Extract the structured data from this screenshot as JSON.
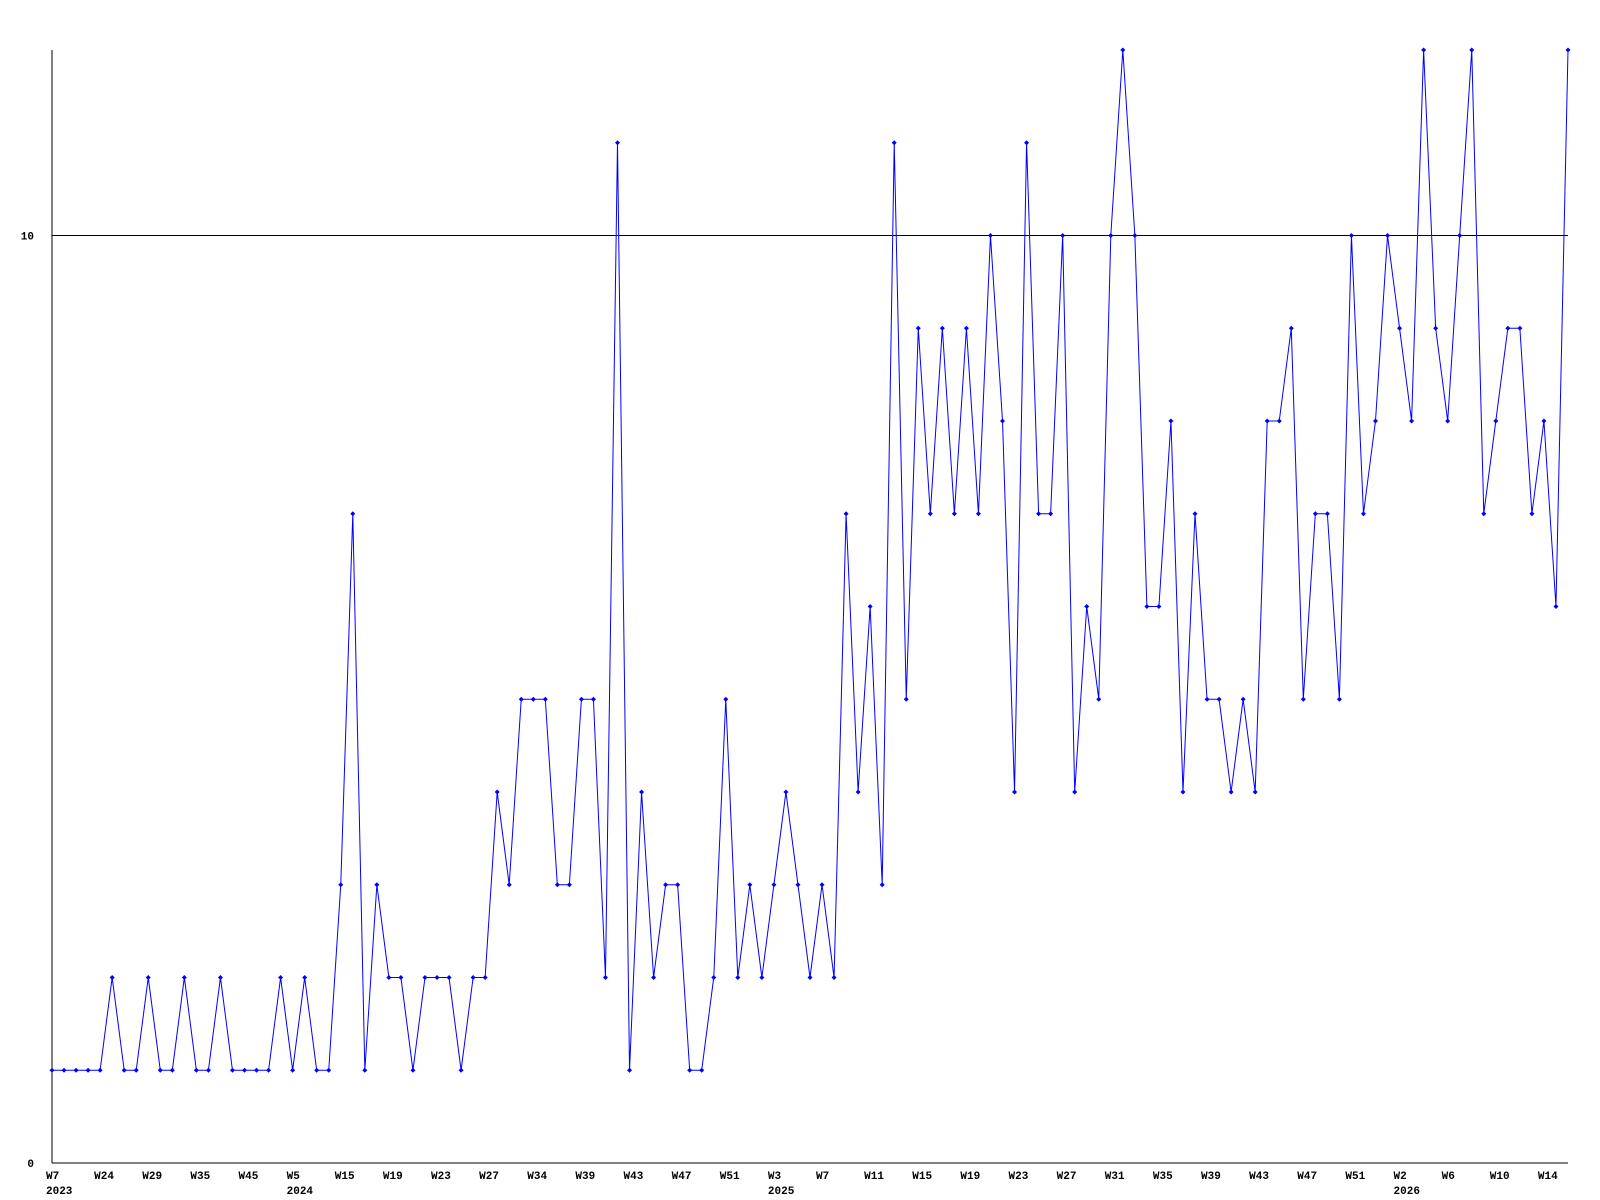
{
  "chart_data": {
    "type": "line",
    "categories": [
      "W7",
      null,
      null,
      null,
      "W24",
      null,
      null,
      null,
      "W29",
      null,
      null,
      null,
      "W35",
      null,
      null,
      null,
      "W45",
      null,
      null,
      null,
      "W5",
      null,
      null,
      null,
      "W15",
      null,
      null,
      null,
      "W19",
      null,
      null,
      null,
      "W23",
      null,
      null,
      null,
      "W27",
      null,
      null,
      null,
      "W34",
      null,
      null,
      null,
      "W39",
      null,
      null,
      null,
      "W43",
      null,
      null,
      null,
      "W47",
      null,
      null,
      null,
      "W51",
      null,
      null,
      null,
      "W3",
      null,
      null,
      null,
      "W7",
      null,
      null,
      null,
      "W11",
      null,
      null,
      null,
      "W15",
      null,
      null,
      null,
      "W19",
      null,
      null,
      null,
      "W23",
      null,
      null,
      null,
      "W27",
      null,
      null,
      null,
      "W31",
      null,
      null,
      null,
      "W35",
      null,
      null,
      null,
      "W39",
      null,
      null,
      null,
      "W43",
      null,
      null,
      null,
      "W47",
      null,
      null,
      null,
      "W51",
      null,
      null,
      null,
      "W2",
      null,
      null,
      null,
      "W6",
      null,
      null,
      null,
      "W10",
      null,
      null,
      null,
      "W14",
      null,
      null
    ],
    "years": [
      "2023",
      null,
      null,
      null,
      null,
      null,
      null,
      null,
      null,
      null,
      null,
      null,
      null,
      null,
      null,
      null,
      null,
      null,
      null,
      null,
      "2024",
      null,
      null,
      null,
      null,
      null,
      null,
      null,
      null,
      null,
      null,
      null,
      null,
      null,
      null,
      null,
      null,
      null,
      null,
      null,
      null,
      null,
      null,
      null,
      null,
      null,
      null,
      null,
      null,
      null,
      null,
      null,
      null,
      null,
      null,
      null,
      null,
      null,
      null,
      null,
      "2025",
      null,
      null,
      null,
      null,
      null,
      null,
      null,
      null,
      null,
      null,
      null,
      null,
      null,
      null,
      null,
      null,
      null,
      null,
      null,
      null,
      null,
      null,
      null,
      null,
      null,
      null,
      null,
      null,
      null,
      null,
      null,
      null,
      null,
      null,
      null,
      null,
      null,
      null,
      null,
      null,
      null,
      null,
      null,
      null,
      null,
      null,
      null,
      null,
      null,
      null,
      null,
      "2026",
      null,
      null,
      null,
      null,
      null,
      null,
      null,
      null,
      null,
      null,
      null,
      null,
      null,
      null
    ],
    "series": [
      {
        "color": "#0000ff",
        "values": [
          1,
          1,
          1,
          1,
          1,
          2,
          1,
          1,
          2,
          1,
          1,
          2,
          1,
          1,
          2,
          1,
          1,
          1,
          1,
          2,
          1,
          2,
          1,
          1,
          3,
          7,
          1,
          3,
          2,
          2,
          1,
          2,
          2,
          2,
          1,
          2,
          2,
          4,
          3,
          5,
          5,
          5,
          3,
          3,
          5,
          5,
          2,
          11,
          1,
          4,
          2,
          3,
          3,
          1,
          1,
          2,
          5,
          2,
          3,
          2,
          3,
          4,
          3,
          2,
          3,
          2,
          7,
          4,
          6,
          3,
          11,
          5,
          9,
          7,
          9,
          7,
          9,
          7,
          10,
          8,
          4,
          11,
          7,
          7,
          10,
          4,
          6,
          5,
          10,
          12,
          10,
          6,
          6,
          8,
          4,
          7,
          5,
          5,
          4,
          5,
          4,
          8,
          8,
          9,
          5,
          7,
          7,
          5,
          10,
          7,
          8,
          10,
          9,
          8,
          12,
          9,
          8,
          10,
          12,
          7,
          8,
          9,
          9,
          7,
          8,
          6,
          12
        ]
      }
    ],
    "ylim": [
      0,
      12
    ],
    "yticks": [
      0,
      10
    ],
    "grid": true
  }
}
